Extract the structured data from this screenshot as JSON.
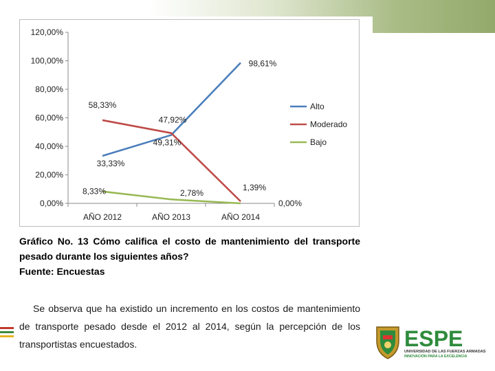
{
  "chart_data": {
    "type": "line",
    "categories": [
      "AÑO 2012",
      "AÑO 2013",
      "AÑO 2014"
    ],
    "yticks": [
      "0,00%",
      "20,00%",
      "40,00%",
      "60,00%",
      "80,00%",
      "100,00%",
      "120,00%"
    ],
    "ylim": [
      0,
      120
    ],
    "series": [
      {
        "name": "Alto",
        "color": "#4a7ebb",
        "values": [
          33.33,
          47.92,
          98.61
        ],
        "labels": [
          "33,33%",
          "47,92%",
          "98,61%"
        ]
      },
      {
        "name": "Moderado",
        "color": "#be4b48",
        "values": [
          58.33,
          49.31,
          1.39
        ],
        "labels": [
          "58,33%",
          "49,31%",
          "1,39%"
        ]
      },
      {
        "name": "Bajo",
        "color": "#98b954",
        "values": [
          8.33,
          2.78,
          0.0
        ],
        "labels": [
          "8,33%",
          "2,78%",
          "0,00%"
        ]
      }
    ],
    "legend_position": "right",
    "grid": false
  },
  "caption": "Gráfico No. 13 Cómo califica el costo de mantenimiento del transporte pesado durante los siguientes años?",
  "source": "Fuente: Encuestas",
  "paragraph": "Se observa que ha existido un incremento en los costos de mantenimiento de transporte pesado desde el 2012 al 2014, según la percepción de los transportistas encuestados.",
  "logo": {
    "name": "ESPE",
    "line1": "UNIVERSIDAD DE LAS FUERZAS ARMADAS",
    "line2": "INNOVACIÓN PARA LA EXCELENCIA",
    "color": "#2e8b3c"
  }
}
